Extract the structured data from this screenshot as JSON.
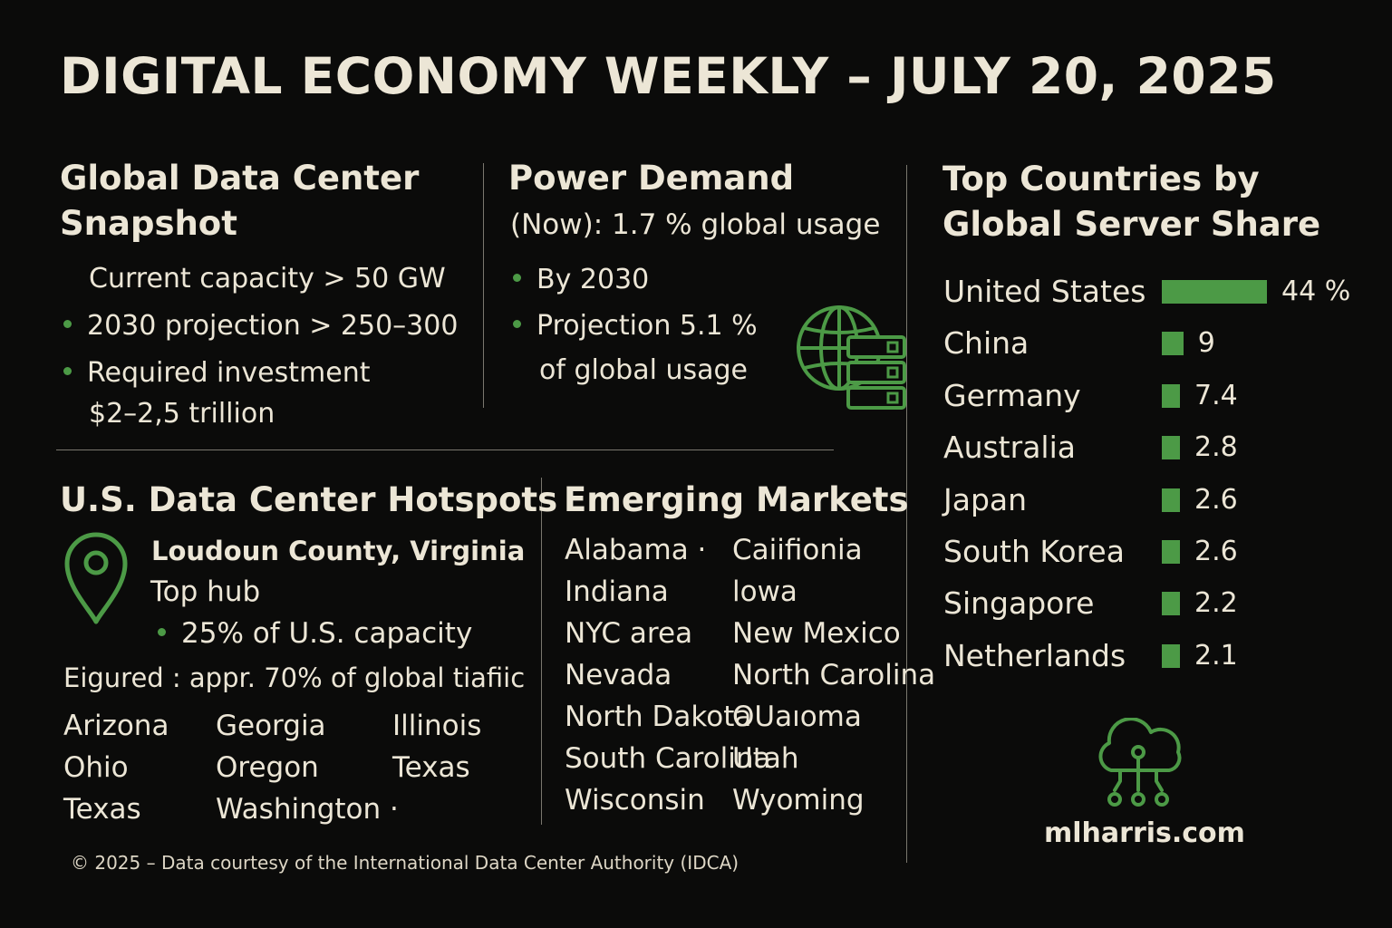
{
  "title": "DIGITAL ECONOMY WEEKLY – JULY 20, 2025",
  "snapshot": {
    "heading_line1": "Global Data Center",
    "heading_line2": "Snapshot",
    "capacity": "Current capacity > 50 GW",
    "projection": "2030 projection > 250–300",
    "investment_line1": "Required investment",
    "investment_line2": "$2–2,5 trillion"
  },
  "power": {
    "heading": "Power Demand",
    "subheading": "(Now): 1.7 % global usage",
    "by2030": "By 2030",
    "projection_line1": "Projection 5.1 %",
    "projection_line2": "of global usage",
    "icon": "globe-server-icon"
  },
  "hotspots": {
    "heading": "U.S. Data Center Hotspots",
    "hub_name": "Loudoun County, Virginia",
    "hub_label": "Top hub",
    "hub_share": "25% of U.S. capacity",
    "traffic": "Eigured : appr. 70% of global tiafiic",
    "states": [
      "Arizona",
      "Georgia",
      "Illinois",
      "Ohio",
      "Oregon",
      "Texas",
      "Texas",
      "Washington ·",
      ""
    ],
    "icon": "map-pin-icon"
  },
  "emerging": {
    "heading": "Emerging Markets",
    "markets": [
      "Alabama ·",
      "Caiifionia",
      "Indiana",
      "lowa",
      "NYC area",
      "New Mexico",
      "Nevada",
      "North Carolina",
      "North Dakota",
      "OUaıoma",
      "South Carolina",
      "Utah",
      "Wisconsin",
      "Wyoming"
    ]
  },
  "chart_data": {
    "type": "bar",
    "title": "Top Countries by Global Server Share",
    "categories": [
      "United States",
      "China",
      "Germany",
      "Australia",
      "Japan",
      "South Korea",
      "Singapore",
      "Netherlands"
    ],
    "values": [
      44,
      9,
      7.4,
      2.8,
      2.6,
      2.6,
      2.2,
      2.1
    ],
    "value_labels": [
      "44 %",
      "9",
      "7.4",
      "2.8",
      "2.6",
      "2.6",
      "2.2",
      "2.1"
    ],
    "orientation": "horizontal",
    "color": "#4c9a46",
    "legend": "none"
  },
  "chart_heading": {
    "line1": "Top Countries by",
    "line2": "Global Server Share"
  },
  "brand": {
    "name": "mlharris.com",
    "icon": "cloud-network-icon"
  },
  "footer": "© 2025 – Data courtesy of the International Data Center Authority (IDCA)",
  "colors": {
    "background": "#0b0b0a",
    "text": "#ece6d6",
    "accent": "#4c9a46",
    "divider": "#7a776e"
  }
}
